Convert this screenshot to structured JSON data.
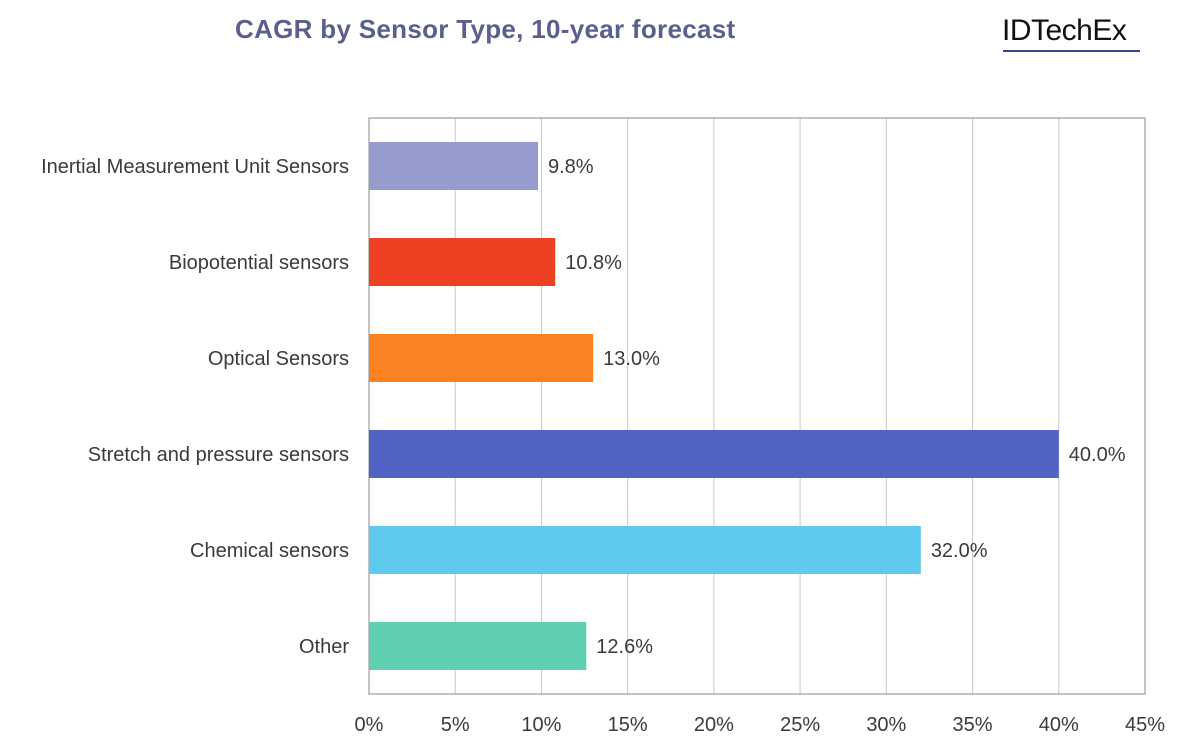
{
  "header": {
    "title": "CAGR by Sensor Type, 10-year forecast",
    "brand": "IDTechEx"
  },
  "chart_data": {
    "type": "bar",
    "orientation": "horizontal",
    "title": "CAGR by Sensor Type, 10-year forecast",
    "xlabel": "",
    "ylabel": "",
    "categories": [
      "Inertial Measurement Unit Sensors",
      "Biopotential sensors",
      "Optical Sensors",
      "Stretch and pressure sensors",
      "Chemical sensors",
      "Other"
    ],
    "values": [
      9.8,
      10.8,
      13.0,
      40.0,
      32.0,
      12.6
    ],
    "value_labels": [
      "9.8%",
      "10.8%",
      "13.0%",
      "40.0%",
      "32.0%",
      "12.6%"
    ],
    "colors": [
      "#959bcc",
      "#ee4023",
      "#fb8121",
      "#4f63c4",
      "#5ecaf0",
      "#5ecfb1"
    ],
    "xlim": [
      0,
      45
    ],
    "x_ticks": [
      0,
      5,
      10,
      15,
      20,
      25,
      30,
      35,
      40,
      45
    ],
    "x_tick_labels": [
      "0%",
      "5%",
      "10%",
      "15%",
      "20%",
      "25%",
      "30%",
      "35%",
      "40%",
      "45%"
    ],
    "grid": "vertical",
    "legend": "none"
  }
}
